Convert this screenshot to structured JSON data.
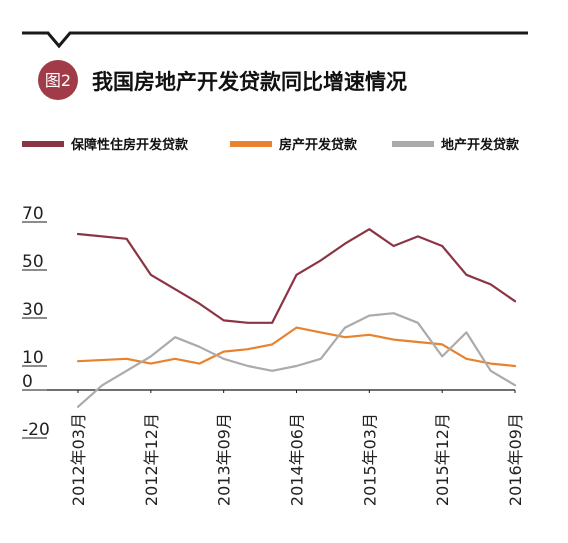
{
  "figure": {
    "badge": "图2",
    "title": "我国房地产开发贷款同比增速情况"
  },
  "colors": {
    "badge_bg": "#a03b47",
    "divider": "#1a1a1a",
    "axis": "#1a1a1a",
    "tick_text": "#222222"
  },
  "chart_data": {
    "type": "line",
    "title": "我国房地产开发贷款同比增速情况",
    "xlabel": "",
    "ylabel": "",
    "ylim": [
      -20,
      70
    ],
    "yticks": [
      -20,
      0,
      10,
      30,
      50,
      70
    ],
    "xticks": [
      "2012年03月",
      "2012年12月",
      "2013年09月",
      "2014年06月",
      "2015年03月",
      "2015年12月",
      "2016年09月"
    ],
    "legend_position": "top",
    "grid": false,
    "series": [
      {
        "name": "保障性住房开发贷款",
        "color": "#8b3444",
        "points": [
          {
            "x": "2012-03",
            "y": 65
          },
          {
            "x": "2012-09",
            "y": 63
          },
          {
            "x": "2012-12",
            "y": 48
          },
          {
            "x": "2013-03",
            "y": 42
          },
          {
            "x": "2013-06",
            "y": 36
          },
          {
            "x": "2013-09",
            "y": 29
          },
          {
            "x": "2013-12",
            "y": 28
          },
          {
            "x": "2014-03",
            "y": 28
          },
          {
            "x": "2014-06",
            "y": 48
          },
          {
            "x": "2014-09",
            "y": 54
          },
          {
            "x": "2014-12",
            "y": 61
          },
          {
            "x": "2015-03",
            "y": 67
          },
          {
            "x": "2015-06",
            "y": 60
          },
          {
            "x": "2015-09",
            "y": 64
          },
          {
            "x": "2015-12",
            "y": 60
          },
          {
            "x": "2016-03",
            "y": 48
          },
          {
            "x": "2016-06",
            "y": 44
          },
          {
            "x": "2016-09",
            "y": 37
          }
        ]
      },
      {
        "name": "房产开发贷款",
        "color": "#e8822e",
        "points": [
          {
            "x": "2012-03",
            "y": 12
          },
          {
            "x": "2012-09",
            "y": 13
          },
          {
            "x": "2012-12",
            "y": 11
          },
          {
            "x": "2013-03",
            "y": 13
          },
          {
            "x": "2013-06",
            "y": 11
          },
          {
            "x": "2013-09",
            "y": 16
          },
          {
            "x": "2013-12",
            "y": 17
          },
          {
            "x": "2014-03",
            "y": 19
          },
          {
            "x": "2014-06",
            "y": 26
          },
          {
            "x": "2014-09",
            "y": 24
          },
          {
            "x": "2014-12",
            "y": 22
          },
          {
            "x": "2015-03",
            "y": 23
          },
          {
            "x": "2015-06",
            "y": 21
          },
          {
            "x": "2015-09",
            "y": 20
          },
          {
            "x": "2015-12",
            "y": 19
          },
          {
            "x": "2016-03",
            "y": 13
          },
          {
            "x": "2016-06",
            "y": 11
          },
          {
            "x": "2016-09",
            "y": 10
          }
        ]
      },
      {
        "name": "地产开发贷款",
        "color": "#ababab",
        "points": [
          {
            "x": "2012-03",
            "y": -7
          },
          {
            "x": "2012-06",
            "y": 2
          },
          {
            "x": "2012-09",
            "y": 8
          },
          {
            "x": "2012-12",
            "y": 14
          },
          {
            "x": "2013-03",
            "y": 22
          },
          {
            "x": "2013-06",
            "y": 18
          },
          {
            "x": "2013-09",
            "y": 13
          },
          {
            "x": "2013-12",
            "y": 10
          },
          {
            "x": "2014-03",
            "y": 8
          },
          {
            "x": "2014-06",
            "y": 10
          },
          {
            "x": "2014-09",
            "y": 13
          },
          {
            "x": "2014-12",
            "y": 26
          },
          {
            "x": "2015-03",
            "y": 31
          },
          {
            "x": "2015-06",
            "y": 32
          },
          {
            "x": "2015-09",
            "y": 28
          },
          {
            "x": "2015-12",
            "y": 14
          },
          {
            "x": "2016-03",
            "y": 24
          },
          {
            "x": "2016-06",
            "y": 8
          },
          {
            "x": "2016-09",
            "y": 2
          }
        ]
      }
    ]
  }
}
